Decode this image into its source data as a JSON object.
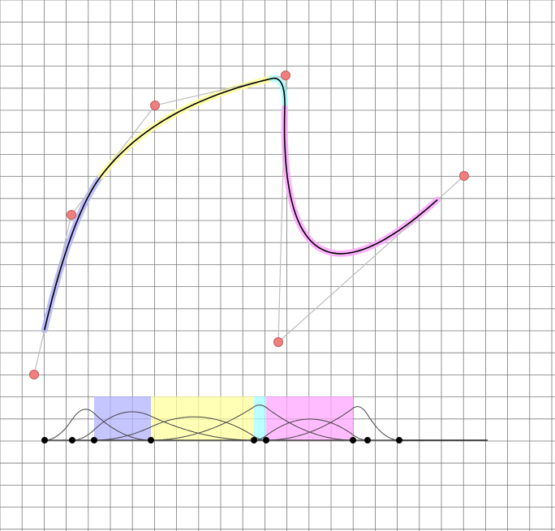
{
  "canvas": {
    "background": "#ffffff",
    "grid_color": "#7a7a7a"
  },
  "colors": {
    "control_point_fill": "#f07f7f",
    "control_point_stroke": "#c85a5a",
    "control_polygon": "#bdbdbd",
    "curve": "#000000",
    "knot_marker": "#000000",
    "segment_highlights": [
      "#b3b3ff",
      "#ffff9e",
      "#a6ffff",
      "#ffa6ff"
    ]
  },
  "control_points": [
    {
      "id": "p0"
    },
    {
      "id": "p1"
    },
    {
      "id": "p2"
    },
    {
      "id": "p3"
    },
    {
      "id": "p4"
    },
    {
      "id": "p5"
    }
  ],
  "knots": [
    {
      "id": "k0"
    },
    {
      "id": "k1"
    },
    {
      "id": "k2"
    },
    {
      "id": "k3"
    },
    {
      "id": "k4"
    },
    {
      "id": "k5"
    },
    {
      "id": "k6"
    },
    {
      "id": "k7"
    },
    {
      "id": "k8"
    }
  ]
}
